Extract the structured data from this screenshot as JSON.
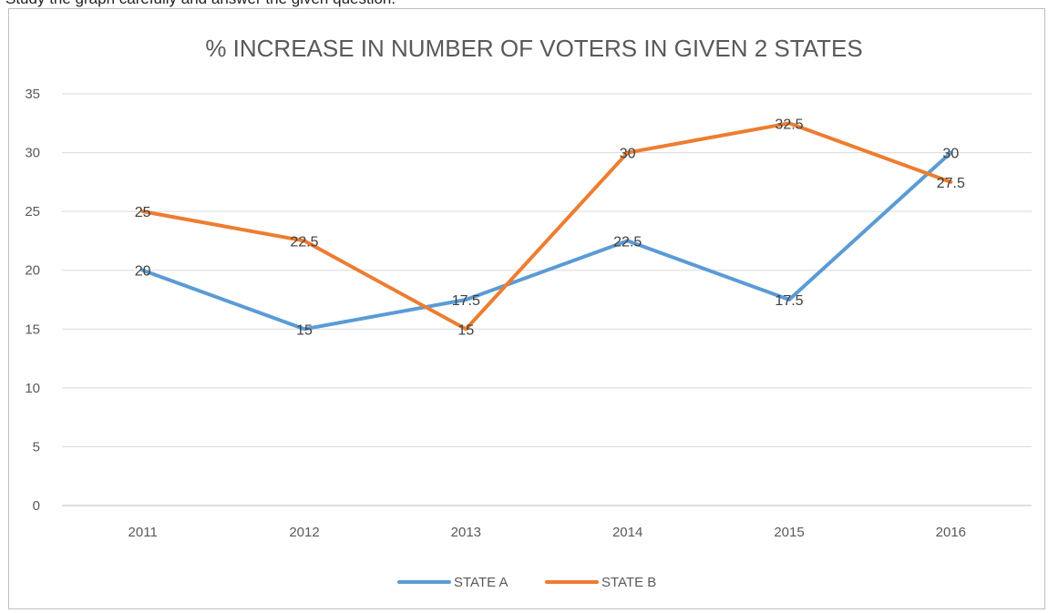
{
  "caption": "Study the graph carefully and answer the given question.",
  "chart_data": {
    "type": "line",
    "title": "% INCREASE IN NUMBER OF VOTERS IN GIVEN 2 STATES",
    "categories": [
      "2011",
      "2012",
      "2013",
      "2014",
      "2015",
      "2016"
    ],
    "series": [
      {
        "name": "STATE A",
        "color": "#5b9bd5",
        "values": [
          20,
          15,
          17.5,
          22.5,
          17.5,
          30
        ]
      },
      {
        "name": "STATE B",
        "color": "#ed7d31",
        "values": [
          25,
          22.5,
          15,
          30,
          32.5,
          27.5
        ]
      }
    ],
    "ylim": [
      0,
      35
    ],
    "yticks": [
      "0",
      "5",
      "10",
      "15",
      "20",
      "25",
      "30",
      "35"
    ],
    "grid": true,
    "legend": "bottom"
  }
}
